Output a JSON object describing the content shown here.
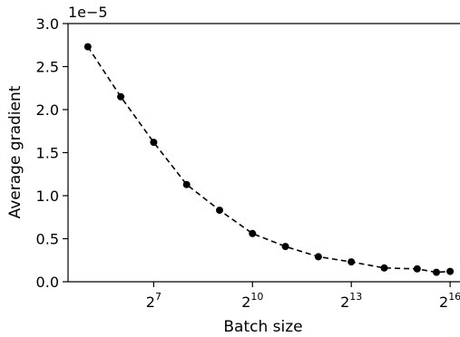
{
  "chart_data": {
    "type": "line",
    "xlabel": "Batch size",
    "ylabel": "Average gradient",
    "y_offset_label": "1e−5",
    "x_scale": "log2",
    "xlim": [
      4.4,
      16.3
    ],
    "ylim": [
      0.0,
      3.0
    ],
    "y_ticks": [
      0.0,
      0.5,
      1.0,
      1.5,
      2.0,
      2.5,
      3.0
    ],
    "y_tick_labels": [
      "0.0",
      "0.5",
      "1.0",
      "1.5",
      "2.0",
      "2.5",
      "3.0"
    ],
    "x_ticks": [
      {
        "base": "2",
        "exponent": "7",
        "log2": 7
      },
      {
        "base": "2",
        "exponent": "10",
        "log2": 10
      },
      {
        "base": "2",
        "exponent": "13",
        "log2": 13
      },
      {
        "base": "2",
        "exponent": "16",
        "log2": 16
      }
    ],
    "line_style": "dashed",
    "marker": "circle",
    "color": "#000000",
    "grid": false,
    "series": [
      {
        "x": [
          32,
          64,
          128,
          256,
          512,
          1024,
          2048,
          4096,
          8192,
          16384,
          32768,
          49152,
          65536
        ],
        "y": [
          2.73,
          2.15,
          1.62,
          1.13,
          0.83,
          0.56,
          0.41,
          0.29,
          0.23,
          0.16,
          0.15,
          0.11,
          0.12
        ]
      }
    ]
  }
}
